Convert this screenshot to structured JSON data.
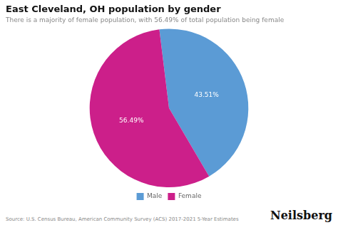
{
  "chart_data": {
    "type": "pie",
    "title": "East Cleveland, OH population by gender",
    "subtitle": "There is a majority of female population, with 56.49% of total population being female",
    "categories": [
      "Male",
      "Female"
    ],
    "values": [
      43.51,
      56.49
    ],
    "value_labels": [
      "43.51%",
      "56.49%"
    ],
    "colors": [
      "#5B9BD5",
      "#CC1F8A"
    ],
    "data_labels": true,
    "legend": "bottom",
    "annotations": [
      "Source: U.S. Census Bureau, American Community Survey (ACS) 2017-2021 5-Year Estimates",
      "Neilsberg"
    ]
  }
}
